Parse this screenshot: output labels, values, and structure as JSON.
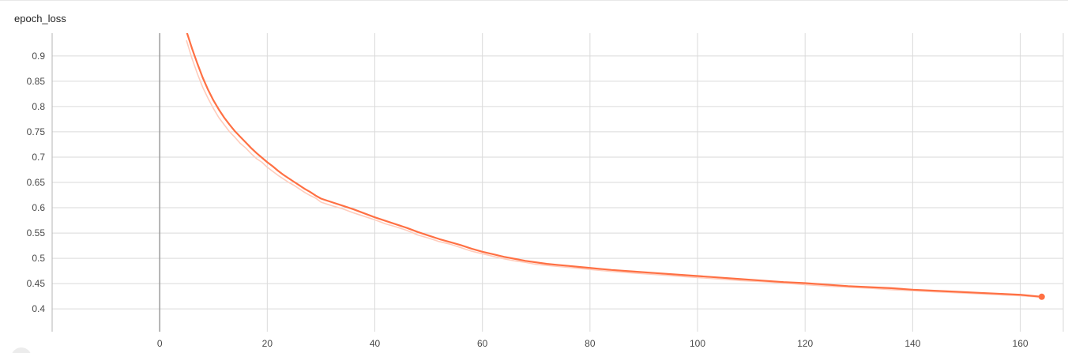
{
  "chart_data": {
    "type": "line",
    "title": "epoch_loss",
    "xlabel": "",
    "ylabel": "",
    "xlim": [
      -20,
      168
    ],
    "ylim": [
      0.355,
      0.945
    ],
    "x_ticks": [
      0,
      20,
      40,
      60,
      80,
      100,
      120,
      140,
      160
    ],
    "y_ticks": [
      0.4,
      0.45,
      0.5,
      0.55,
      0.6,
      0.65,
      0.7,
      0.75,
      0.8,
      0.85,
      0.9
    ],
    "grid": true,
    "series": [
      {
        "style": "smoothed",
        "color": "#ff7043",
        "points": [
          [
            5,
            0.948
          ],
          [
            6,
            0.915
          ],
          [
            7,
            0.885
          ],
          [
            8,
            0.857
          ],
          [
            9,
            0.833
          ],
          [
            10,
            0.812
          ],
          [
            11,
            0.794
          ],
          [
            12,
            0.778
          ],
          [
            13,
            0.764
          ],
          [
            14,
            0.751
          ],
          [
            15,
            0.74
          ],
          [
            16,
            0.729
          ],
          [
            17,
            0.718
          ],
          [
            18,
            0.708
          ],
          [
            19,
            0.699
          ],
          [
            20,
            0.69
          ],
          [
            21,
            0.682
          ],
          [
            22,
            0.673
          ],
          [
            23,
            0.665
          ],
          [
            24,
            0.658
          ],
          [
            25,
            0.651
          ],
          [
            26,
            0.644
          ],
          [
            27,
            0.637
          ],
          [
            28,
            0.631
          ],
          [
            29,
            0.624
          ],
          [
            30,
            0.618
          ],
          [
            32,
            0.611
          ],
          [
            34,
            0.604
          ],
          [
            36,
            0.597
          ],
          [
            38,
            0.589
          ],
          [
            40,
            0.581
          ],
          [
            42,
            0.574
          ],
          [
            44,
            0.567
          ],
          [
            46,
            0.56
          ],
          [
            48,
            0.552
          ],
          [
            50,
            0.545
          ],
          [
            52,
            0.538
          ],
          [
            54,
            0.532
          ],
          [
            56,
            0.526
          ],
          [
            58,
            0.519
          ],
          [
            60,
            0.513
          ],
          [
            62,
            0.508
          ],
          [
            64,
            0.503
          ],
          [
            66,
            0.499
          ],
          [
            68,
            0.495
          ],
          [
            70,
            0.492
          ],
          [
            72,
            0.489
          ],
          [
            74,
            0.487
          ],
          [
            76,
            0.485
          ],
          [
            78,
            0.483
          ],
          [
            80,
            0.481
          ],
          [
            84,
            0.477
          ],
          [
            88,
            0.474
          ],
          [
            92,
            0.471
          ],
          [
            96,
            0.468
          ],
          [
            100,
            0.465
          ],
          [
            104,
            0.462
          ],
          [
            108,
            0.459
          ],
          [
            112,
            0.456
          ],
          [
            116,
            0.453
          ],
          [
            120,
            0.451
          ],
          [
            124,
            0.448
          ],
          [
            128,
            0.445
          ],
          [
            132,
            0.443
          ],
          [
            136,
            0.441
          ],
          [
            140,
            0.438
          ],
          [
            144,
            0.436
          ],
          [
            148,
            0.434
          ],
          [
            152,
            0.432
          ],
          [
            156,
            0.43
          ],
          [
            160,
            0.428
          ],
          [
            164,
            0.424
          ]
        ]
      },
      {
        "style": "raw",
        "color": "#ffccbc",
        "points": [
          [
            5,
            0.93
          ],
          [
            6,
            0.895
          ],
          [
            7,
            0.865
          ],
          [
            8,
            0.838
          ],
          [
            9,
            0.816
          ],
          [
            10,
            0.796
          ],
          [
            11,
            0.778
          ],
          [
            12,
            0.764
          ],
          [
            13,
            0.75
          ],
          [
            14,
            0.739
          ],
          [
            15,
            0.727
          ],
          [
            16,
            0.718
          ],
          [
            17,
            0.707
          ],
          [
            18,
            0.697
          ],
          [
            19,
            0.69
          ],
          [
            20,
            0.68
          ],
          [
            21,
            0.672
          ],
          [
            22,
            0.664
          ],
          [
            23,
            0.657
          ],
          [
            24,
            0.65
          ],
          [
            25,
            0.644
          ],
          [
            26,
            0.637
          ],
          [
            27,
            0.63
          ],
          [
            28,
            0.624
          ],
          [
            29,
            0.619
          ],
          [
            30,
            0.611
          ],
          [
            32,
            0.604
          ],
          [
            34,
            0.598
          ],
          [
            36,
            0.59
          ],
          [
            38,
            0.583
          ],
          [
            40,
            0.576
          ],
          [
            42,
            0.568
          ],
          [
            44,
            0.562
          ],
          [
            46,
            0.555
          ],
          [
            48,
            0.546
          ],
          [
            50,
            0.54
          ],
          [
            52,
            0.533
          ],
          [
            54,
            0.528
          ],
          [
            56,
            0.521
          ],
          [
            58,
            0.514
          ],
          [
            60,
            0.509
          ],
          [
            62,
            0.504
          ],
          [
            64,
            0.499
          ],
          [
            66,
            0.495
          ],
          [
            68,
            0.492
          ],
          [
            70,
            0.488
          ],
          [
            72,
            0.486
          ],
          [
            74,
            0.484
          ],
          [
            76,
            0.482
          ],
          [
            78,
            0.48
          ],
          [
            80,
            0.478
          ],
          [
            84,
            0.474
          ],
          [
            88,
            0.471
          ],
          [
            92,
            0.468
          ],
          [
            96,
            0.465
          ],
          [
            100,
            0.462
          ],
          [
            104,
            0.459
          ],
          [
            108,
            0.456
          ],
          [
            112,
            0.454
          ],
          [
            116,
            0.451
          ],
          [
            120,
            0.448
          ],
          [
            124,
            0.445
          ],
          [
            128,
            0.443
          ],
          [
            132,
            0.441
          ],
          [
            136,
            0.438
          ],
          [
            140,
            0.436
          ],
          [
            144,
            0.434
          ],
          [
            148,
            0.432
          ],
          [
            152,
            0.43
          ],
          [
            156,
            0.428
          ],
          [
            160,
            0.426
          ],
          [
            164,
            0.423
          ]
        ]
      }
    ]
  }
}
